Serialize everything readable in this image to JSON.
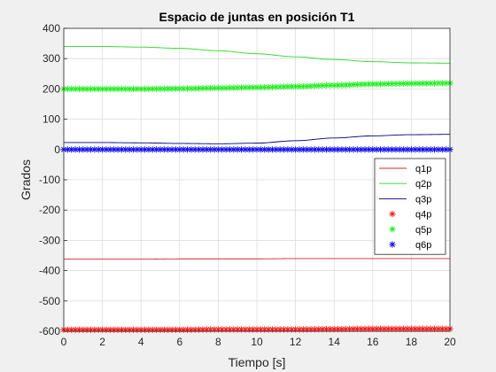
{
  "chart_data": {
    "type": "line",
    "title": "Espacio de juntas en posición T1",
    "xlabel": "Tiempo [s]",
    "ylabel": "Grados",
    "xlim": [
      0,
      20
    ],
    "ylim": [
      -600,
      400
    ],
    "xticks": [
      0,
      2,
      4,
      6,
      8,
      10,
      12,
      14,
      16,
      18,
      20
    ],
    "yticks": [
      -600,
      -500,
      -400,
      -300,
      -200,
      -100,
      0,
      100,
      200,
      300,
      400
    ],
    "grid": true,
    "legend_position": "right",
    "x": [
      0,
      2,
      4,
      6,
      8,
      10,
      12,
      14,
      16,
      18,
      20
    ],
    "series": [
      {
        "name": "q1p",
        "style": "line",
        "color": "#d62728",
        "values": [
          -362,
          -362,
          -362,
          -361,
          -361,
          -361,
          -360,
          -360,
          -360,
          -360,
          -360
        ]
      },
      {
        "name": "q2p",
        "style": "line",
        "color": "#22dd22",
        "values": [
          340,
          340,
          338,
          334,
          326,
          316,
          306,
          297,
          290,
          286,
          285
        ]
      },
      {
        "name": "q3p",
        "style": "line",
        "color": "#000080",
        "values": [
          23,
          23,
          22,
          20,
          19,
          21,
          29,
          38,
          45,
          49,
          50
        ]
      },
      {
        "name": "q4p",
        "style": "marker",
        "color": "#ff1a1a",
        "values": [
          -595,
          -595,
          -595,
          -595,
          -594,
          -594,
          -594,
          -593,
          -592,
          -592,
          -592
        ]
      },
      {
        "name": "q5p",
        "style": "marker",
        "color": "#22ee22",
        "values": [
          200,
          200,
          200,
          201,
          203,
          205,
          208,
          212,
          216,
          218,
          219
        ]
      },
      {
        "name": "q6p",
        "style": "marker",
        "color": "#1010ee",
        "values": [
          0,
          0,
          0,
          0,
          0,
          0,
          0,
          0,
          0,
          0,
          0
        ]
      }
    ]
  }
}
